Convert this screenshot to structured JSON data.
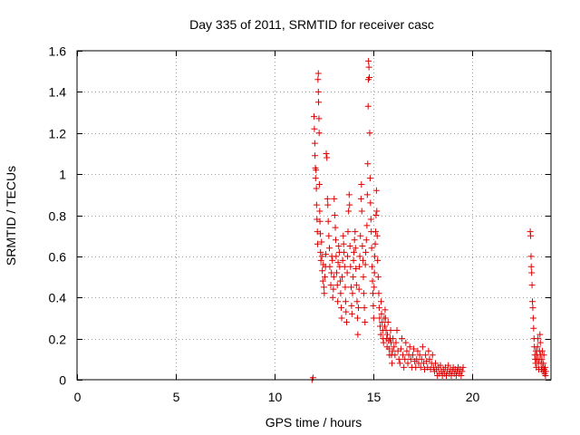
{
  "chart_data": {
    "type": "scatter",
    "title": "Day 335 of 2011, SRMTID for receiver casc",
    "xlabel": "GPS time / hours",
    "ylabel": "SRMTID / TECUs",
    "xlim": [
      0,
      24
    ],
    "ylim": [
      0,
      1.6
    ],
    "xticks": [
      0,
      5,
      10,
      15,
      20
    ],
    "xtick_labels": [
      "0",
      "5",
      "10",
      "15",
      "20"
    ],
    "yticks": [
      0,
      0.2,
      0.4,
      0.6,
      0.8,
      1,
      1.2,
      1.4,
      1.6
    ],
    "ytick_labels": [
      "0",
      "0.2",
      "0.4",
      "0.6",
      "0.8",
      "1",
      "1.2",
      "1.4",
      "1.6"
    ],
    "grid": true,
    "marker": "+",
    "color": "#e00000",
    "series": [
      {
        "name": "SRMTID",
        "points": [
          [
            11.9,
            0.0
          ],
          [
            11.95,
            0.01
          ],
          [
            12.0,
            1.28
          ],
          [
            12.02,
            1.22
          ],
          [
            12.04,
            1.15
          ],
          [
            12.05,
            1.09
          ],
          [
            12.07,
            1.03
          ],
          [
            12.08,
            0.98
          ],
          [
            12.1,
            1.02
          ],
          [
            12.12,
            0.93
          ],
          [
            12.13,
            0.85
          ],
          [
            12.15,
            0.78
          ],
          [
            12.17,
            0.72
          ],
          [
            12.18,
            0.66
          ],
          [
            12.2,
            1.46
          ],
          [
            12.22,
            1.49
          ],
          [
            12.22,
            1.4
          ],
          [
            12.23,
            1.35
          ],
          [
            12.25,
            1.27
          ],
          [
            12.26,
            1.2
          ],
          [
            12.27,
            0.95
          ],
          [
            12.29,
            0.82
          ],
          [
            12.3,
            0.77
          ],
          [
            12.32,
            0.71
          ],
          [
            12.33,
            0.62
          ],
          [
            12.35,
            0.58
          ],
          [
            12.38,
            0.67
          ],
          [
            12.4,
            0.6
          ],
          [
            12.42,
            0.53
          ],
          [
            12.45,
            0.48
          ],
          [
            12.47,
            0.56
          ],
          [
            12.5,
            0.45
          ],
          [
            12.52,
            0.42
          ],
          [
            12.55,
            0.5
          ],
          [
            12.58,
            0.55
          ],
          [
            12.6,
            0.61
          ],
          [
            12.62,
            1.1
          ],
          [
            12.65,
            1.08
          ],
          [
            12.68,
            0.88
          ],
          [
            12.7,
            0.85
          ],
          [
            12.72,
            0.77
          ],
          [
            12.75,
            0.7
          ],
          [
            12.78,
            0.64
          ],
          [
            12.8,
            0.55
          ],
          [
            12.85,
            0.46
          ],
          [
            12.88,
            0.52
          ],
          [
            12.9,
            0.6
          ],
          [
            12.93,
            0.58
          ],
          [
            12.95,
            0.4
          ],
          [
            12.98,
            0.44
          ],
          [
            13.0,
            0.5
          ],
          [
            13.02,
            0.88
          ],
          [
            13.05,
            0.8
          ],
          [
            13.08,
            0.74
          ],
          [
            13.1,
            0.68
          ],
          [
            13.12,
            0.6
          ],
          [
            13.15,
            0.52
          ],
          [
            13.18,
            0.46
          ],
          [
            13.2,
            0.38
          ],
          [
            13.22,
            0.57
          ],
          [
            13.25,
            0.65
          ],
          [
            13.28,
            0.62
          ],
          [
            13.3,
            0.55
          ],
          [
            13.33,
            0.48
          ],
          [
            13.35,
            0.42
          ],
          [
            13.38,
            0.35
          ],
          [
            13.4,
            0.3
          ],
          [
            13.42,
            0.5
          ],
          [
            13.45,
            0.58
          ],
          [
            13.48,
            0.7
          ],
          [
            13.5,
            0.66
          ],
          [
            13.52,
            0.62
          ],
          [
            13.55,
            0.55
          ],
          [
            13.58,
            0.45
          ],
          [
            13.6,
            0.38
          ],
          [
            13.62,
            0.33
          ],
          [
            13.65,
            0.28
          ],
          [
            13.68,
            0.52
          ],
          [
            13.7,
            0.6
          ],
          [
            13.72,
            0.72
          ],
          [
            13.75,
            0.82
          ],
          [
            13.78,
            0.9
          ],
          [
            13.8,
            0.85
          ],
          [
            13.82,
            0.65
          ],
          [
            13.85,
            0.55
          ],
          [
            13.88,
            0.45
          ],
          [
            13.9,
            0.36
          ],
          [
            13.92,
            0.32
          ],
          [
            13.95,
            0.42
          ],
          [
            13.98,
            0.5
          ],
          [
            14.0,
            0.58
          ],
          [
            14.02,
            0.62
          ],
          [
            14.05,
            0.68
          ],
          [
            14.08,
            0.72
          ],
          [
            14.1,
            0.64
          ],
          [
            14.12,
            0.54
          ],
          [
            14.15,
            0.46
          ],
          [
            14.18,
            0.38
          ],
          [
            14.2,
            0.3
          ],
          [
            14.22,
            0.22
          ],
          [
            14.25,
            0.35
          ],
          [
            14.28,
            0.44
          ],
          [
            14.3,
            0.55
          ],
          [
            14.32,
            0.6
          ],
          [
            14.35,
            0.7
          ],
          [
            14.38,
            0.88
          ],
          [
            14.4,
            0.95
          ],
          [
            14.42,
            0.82
          ],
          [
            14.45,
            0.65
          ],
          [
            14.48,
            0.58
          ],
          [
            14.5,
            0.5
          ],
          [
            14.52,
            0.42
          ],
          [
            14.55,
            0.35
          ],
          [
            14.58,
            0.28
          ],
          [
            14.6,
            0.56
          ],
          [
            14.62,
            0.62
          ],
          [
            14.65,
            0.68
          ],
          [
            14.68,
            0.75
          ],
          [
            14.7,
            0.9
          ],
          [
            14.72,
            1.05
          ],
          [
            14.74,
            1.33
          ],
          [
            14.75,
            1.46
          ],
          [
            14.76,
            1.55
          ],
          [
            14.78,
            1.52
          ],
          [
            14.8,
            1.47
          ],
          [
            14.82,
            1.2
          ],
          [
            14.84,
            0.98
          ],
          [
            14.86,
            0.86
          ],
          [
            14.88,
            0.78
          ],
          [
            14.9,
            0.72
          ],
          [
            14.92,
            0.64
          ],
          [
            14.94,
            0.55
          ],
          [
            14.96,
            0.48
          ],
          [
            14.98,
            0.42
          ],
          [
            15.0,
            0.36
          ],
          [
            15.02,
            0.3
          ],
          [
            15.04,
            0.45
          ],
          [
            15.06,
            0.52
          ],
          [
            15.08,
            0.6
          ],
          [
            15.1,
            0.66
          ],
          [
            15.12,
            0.72
          ],
          [
            15.14,
            0.8
          ],
          [
            15.16,
            0.92
          ],
          [
            15.18,
            0.82
          ],
          [
            15.2,
            0.7
          ],
          [
            15.22,
            0.58
          ],
          [
            15.25,
            0.5
          ],
          [
            15.28,
            0.42
          ],
          [
            15.3,
            0.35
          ],
          [
            15.32,
            0.3
          ],
          [
            15.35,
            0.26
          ],
          [
            15.38,
            0.22
          ],
          [
            15.4,
            0.38
          ],
          [
            15.42,
            0.32
          ],
          [
            15.45,
            0.28
          ],
          [
            15.48,
            0.24
          ],
          [
            15.5,
            0.2
          ],
          [
            15.52,
            0.18
          ],
          [
            15.55,
            0.3
          ],
          [
            15.58,
            0.26
          ],
          [
            15.6,
            0.34
          ],
          [
            15.62,
            0.3
          ],
          [
            15.65,
            0.24
          ],
          [
            15.68,
            0.2
          ],
          [
            15.7,
            0.16
          ],
          [
            15.72,
            0.22
          ],
          [
            15.75,
            0.28
          ],
          [
            15.78,
            0.19
          ],
          [
            15.8,
            0.15
          ],
          [
            15.82,
            0.12
          ],
          [
            15.85,
            0.2
          ],
          [
            15.88,
            0.24
          ],
          [
            15.9,
            0.18
          ],
          [
            15.92,
            0.12
          ],
          [
            15.95,
            0.08
          ],
          [
            15.98,
            0.14
          ],
          [
            16.0,
            0.2
          ],
          [
            16.05,
            0.16
          ],
          [
            16.1,
            0.12
          ],
          [
            16.15,
            0.18
          ],
          [
            16.2,
            0.24
          ],
          [
            16.25,
            0.14
          ],
          [
            16.3,
            0.1
          ],
          [
            16.35,
            0.08
          ],
          [
            16.4,
            0.15
          ],
          [
            16.45,
            0.2
          ],
          [
            16.5,
            0.12
          ],
          [
            16.55,
            0.06
          ],
          [
            16.6,
            0.1
          ],
          [
            16.65,
            0.18
          ],
          [
            16.7,
            0.14
          ],
          [
            16.75,
            0.08
          ],
          [
            16.8,
            0.12
          ],
          [
            16.85,
            0.16
          ],
          [
            16.9,
            0.1
          ],
          [
            16.95,
            0.06
          ],
          [
            17.0,
            0.12
          ],
          [
            17.05,
            0.15
          ],
          [
            17.1,
            0.09
          ],
          [
            17.15,
            0.06
          ],
          [
            17.2,
            0.1
          ],
          [
            17.25,
            0.14
          ],
          [
            17.3,
            0.08
          ],
          [
            17.35,
            0.12
          ],
          [
            17.4,
            0.06
          ],
          [
            17.45,
            0.1
          ],
          [
            17.5,
            0.16
          ],
          [
            17.55,
            0.08
          ],
          [
            17.6,
            0.05
          ],
          [
            17.65,
            0.12
          ],
          [
            17.7,
            0.09
          ],
          [
            17.75,
            0.06
          ],
          [
            17.8,
            0.14
          ],
          [
            17.85,
            0.1
          ],
          [
            17.9,
            0.05
          ],
          [
            17.95,
            0.08
          ],
          [
            18.0,
            0.12
          ],
          [
            18.05,
            0.06
          ],
          [
            18.1,
            0.04
          ],
          [
            18.15,
            0.08
          ],
          [
            18.2,
            0.05
          ],
          [
            18.25,
            0.02
          ],
          [
            18.3,
            0.06
          ],
          [
            18.35,
            0.03
          ],
          [
            18.4,
            0.07
          ],
          [
            18.45,
            0.04
          ],
          [
            18.5,
            0.02
          ],
          [
            18.55,
            0.05
          ],
          [
            18.6,
            0.03
          ],
          [
            18.65,
            0.06
          ],
          [
            18.7,
            0.02
          ],
          [
            18.75,
            0.04
          ],
          [
            18.8,
            0.07
          ],
          [
            18.85,
            0.03
          ],
          [
            18.9,
            0.05
          ],
          [
            18.95,
            0.02
          ],
          [
            19.0,
            0.04
          ],
          [
            19.05,
            0.06
          ],
          [
            19.1,
            0.03
          ],
          [
            19.15,
            0.05
          ],
          [
            19.2,
            0.02
          ],
          [
            19.25,
            0.04
          ],
          [
            19.3,
            0.06
          ],
          [
            19.35,
            0.03
          ],
          [
            19.4,
            0.05
          ],
          [
            19.45,
            0.02
          ],
          [
            19.5,
            0.04
          ],
          [
            19.55,
            0.06
          ],
          [
            22.95,
            0.72
          ],
          [
            22.97,
            0.7
          ],
          [
            22.99,
            0.6
          ],
          [
            23.0,
            0.55
          ],
          [
            23.02,
            0.52
          ],
          [
            23.04,
            0.46
          ],
          [
            23.06,
            0.38
          ],
          [
            23.08,
            0.35
          ],
          [
            23.1,
            0.3
          ],
          [
            23.12,
            0.25
          ],
          [
            23.14,
            0.2
          ],
          [
            23.16,
            0.16
          ],
          [
            23.18,
            0.12
          ],
          [
            23.2,
            0.1
          ],
          [
            23.22,
            0.08
          ],
          [
            23.24,
            0.14
          ],
          [
            23.26,
            0.06
          ],
          [
            23.28,
            0.1
          ],
          [
            23.3,
            0.12
          ],
          [
            23.32,
            0.16
          ],
          [
            23.34,
            0.2
          ],
          [
            23.36,
            0.08
          ],
          [
            23.38,
            0.05
          ],
          [
            23.4,
            0.1
          ],
          [
            23.42,
            0.14
          ],
          [
            23.44,
            0.22
          ],
          [
            23.46,
            0.18
          ],
          [
            23.48,
            0.12
          ],
          [
            23.5,
            0.08
          ],
          [
            23.52,
            0.05
          ],
          [
            23.54,
            0.1
          ],
          [
            23.56,
            0.14
          ],
          [
            23.58,
            0.06
          ],
          [
            23.6,
            0.04
          ],
          [
            23.62,
            0.08
          ],
          [
            23.64,
            0.12
          ],
          [
            23.66,
            0.05
          ],
          [
            23.68,
            0.03
          ],
          [
            23.7,
            0.06
          ],
          [
            23.72,
            0.02
          ],
          [
            23.74,
            0.04
          ]
        ]
      }
    ]
  }
}
